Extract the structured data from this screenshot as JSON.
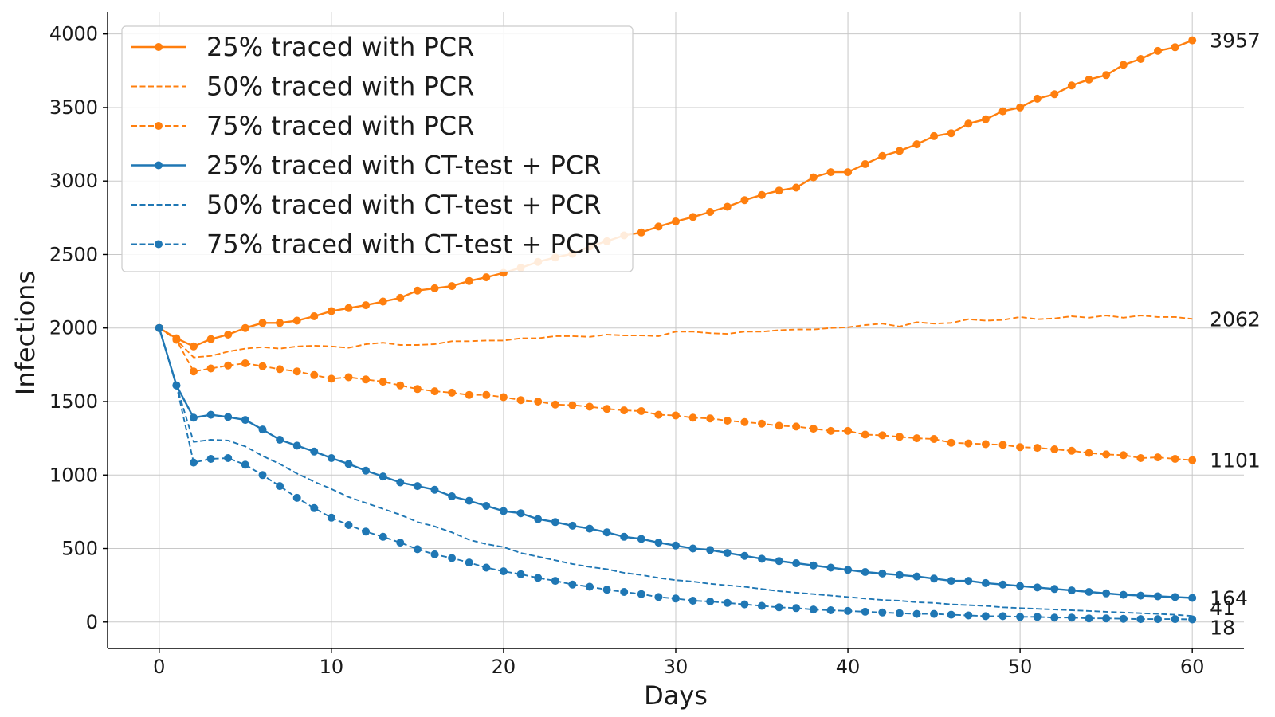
{
  "chart_data": {
    "type": "line",
    "xlabel": "Days",
    "ylabel": "Infections",
    "xlim": [
      -3,
      63
    ],
    "ylim": [
      -180,
      4150
    ],
    "x_ticks": [
      0,
      10,
      20,
      30,
      40,
      50,
      60
    ],
    "y_ticks": [
      0,
      500,
      1000,
      1500,
      2000,
      2500,
      3000,
      3500,
      4000
    ],
    "grid": true,
    "legend_position": "upper-left",
    "x": [
      0,
      1,
      2,
      3,
      4,
      5,
      6,
      7,
      8,
      9,
      10,
      11,
      12,
      13,
      14,
      15,
      16,
      17,
      18,
      19,
      20,
      21,
      22,
      23,
      24,
      25,
      26,
      27,
      28,
      29,
      30,
      31,
      32,
      33,
      34,
      35,
      36,
      37,
      38,
      39,
      40,
      41,
      42,
      43,
      44,
      45,
      46,
      47,
      48,
      49,
      50,
      51,
      52,
      53,
      54,
      55,
      56,
      57,
      58,
      59,
      60
    ],
    "series": [
      {
        "name": "25% traced with PCR",
        "color": "#ff7f0e",
        "style": "solid",
        "markers": true,
        "end_label": "3957",
        "values": [
          2000,
          1930,
          1875,
          1925,
          1955,
          2000,
          2035,
          2035,
          2050,
          2080,
          2115,
          2135,
          2155,
          2180,
          2205,
          2255,
          2270,
          2285,
          2320,
          2345,
          2375,
          2410,
          2450,
          2480,
          2505,
          2555,
          2590,
          2630,
          2650,
          2690,
          2725,
          2755,
          2790,
          2825,
          2870,
          2905,
          2935,
          2955,
          3025,
          3060,
          3060,
          3115,
          3170,
          3205,
          3250,
          3305,
          3325,
          3390,
          3420,
          3475,
          3500,
          3560,
          3590,
          3650,
          3690,
          3720,
          3790,
          3830,
          3885,
          3910,
          3957
        ]
      },
      {
        "name": "50% traced with PCR",
        "color": "#ff7f0e",
        "style": "dashed",
        "markers": false,
        "end_label": "2062",
        "values": [
          2000,
          1920,
          1800,
          1810,
          1840,
          1860,
          1870,
          1860,
          1875,
          1880,
          1875,
          1865,
          1890,
          1900,
          1885,
          1885,
          1890,
          1910,
          1910,
          1915,
          1915,
          1930,
          1930,
          1945,
          1945,
          1940,
          1955,
          1950,
          1950,
          1945,
          1975,
          1975,
          1965,
          1960,
          1975,
          1975,
          1985,
          1990,
          1990,
          2000,
          2005,
          2020,
          2030,
          2010,
          2040,
          2030,
          2035,
          2060,
          2050,
          2055,
          2075,
          2060,
          2065,
          2080,
          2070,
          2085,
          2070,
          2085,
          2075,
          2075,
          2062
        ]
      },
      {
        "name": "75% traced with PCR",
        "color": "#ff7f0e",
        "style": "dashed",
        "markers": true,
        "end_label": "1101",
        "values": [
          2000,
          1920,
          1705,
          1725,
          1745,
          1760,
          1740,
          1720,
          1705,
          1680,
          1655,
          1665,
          1650,
          1635,
          1610,
          1585,
          1570,
          1560,
          1545,
          1545,
          1530,
          1510,
          1500,
          1480,
          1475,
          1465,
          1450,
          1440,
          1435,
          1410,
          1405,
          1390,
          1385,
          1370,
          1360,
          1350,
          1335,
          1330,
          1315,
          1300,
          1300,
          1275,
          1270,
          1260,
          1250,
          1245,
          1220,
          1215,
          1210,
          1205,
          1190,
          1185,
          1175,
          1165,
          1150,
          1140,
          1135,
          1115,
          1120,
          1110,
          1101
        ]
      },
      {
        "name": "25% traced with CT-test + PCR",
        "color": "#1f77b4",
        "style": "solid",
        "markers": true,
        "end_label": "164",
        "values": [
          2000,
          1610,
          1390,
          1410,
          1395,
          1375,
          1310,
          1240,
          1200,
          1160,
          1115,
          1075,
          1030,
          990,
          950,
          925,
          900,
          855,
          825,
          790,
          755,
          740,
          700,
          680,
          655,
          635,
          610,
          580,
          565,
          540,
          520,
          500,
          490,
          470,
          450,
          430,
          415,
          400,
          385,
          370,
          355,
          340,
          330,
          320,
          310,
          295,
          280,
          280,
          265,
          255,
          245,
          235,
          225,
          215,
          205,
          195,
          185,
          180,
          175,
          170,
          164
        ]
      },
      {
        "name": "50% traced with CT-test + PCR",
        "color": "#1f77b4",
        "style": "dashed",
        "markers": false,
        "end_label": "41",
        "values": [
          2000,
          1610,
          1225,
          1240,
          1235,
          1195,
          1130,
          1075,
          1010,
          955,
          905,
          850,
          810,
          770,
          730,
          680,
          650,
          610,
          560,
          530,
          510,
          470,
          445,
          420,
          395,
          375,
          360,
          335,
          320,
          300,
          285,
          275,
          260,
          250,
          240,
          225,
          210,
          200,
          190,
          180,
          170,
          160,
          150,
          145,
          135,
          130,
          120,
          115,
          110,
          100,
          95,
          90,
          85,
          80,
          75,
          70,
          65,
          60,
          55,
          50,
          41
        ]
      },
      {
        "name": "75% traced with CT-test + PCR",
        "color": "#1f77b4",
        "style": "dashed",
        "markers": true,
        "end_label": "18",
        "values": [
          2000,
          1610,
          1085,
          1110,
          1115,
          1070,
          1000,
          925,
          845,
          775,
          710,
          660,
          615,
          580,
          540,
          495,
          460,
          435,
          405,
          370,
          345,
          325,
          300,
          280,
          255,
          240,
          220,
          205,
          190,
          170,
          160,
          145,
          140,
          130,
          120,
          110,
          100,
          95,
          85,
          80,
          75,
          70,
          65,
          60,
          55,
          55,
          50,
          45,
          40,
          40,
          35,
          35,
          30,
          30,
          25,
          25,
          22,
          20,
          20,
          20,
          18
        ]
      }
    ]
  }
}
